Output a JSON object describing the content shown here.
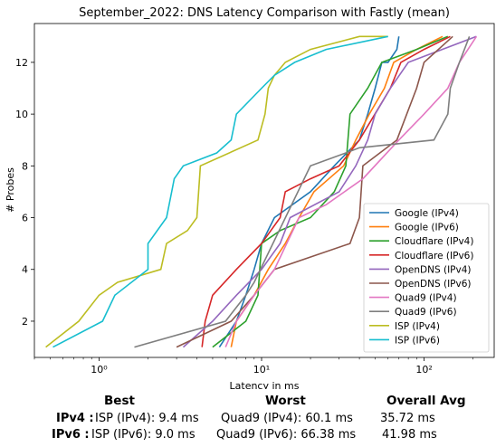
{
  "chart_data": {
    "type": "line",
    "title": "September_2022: DNS Latency Comparison with Fastly (mean)",
    "xlabel": "Latency in ms",
    "ylabel": "# Probes",
    "xscale": "log",
    "xlim": [
      0.4,
      270
    ],
    "ylim": [
      0.6,
      13.5
    ],
    "x_ticks": [
      1,
      10,
      100
    ],
    "x_tick_labels": [
      "10⁰",
      "10¹",
      "10²"
    ],
    "y_ticks": [
      2,
      4,
      6,
      8,
      10,
      12
    ],
    "legend_position": "lower-right",
    "grid": false,
    "series": [
      {
        "name": "Google (IPv4)",
        "color": "#1f77b4",
        "x": [
          5.5,
          7,
          8,
          9,
          10,
          12,
          20,
          28,
          40,
          45,
          50,
          55,
          60,
          68,
          70
        ],
        "y": [
          1,
          2,
          3,
          4,
          5,
          6,
          7,
          8,
          9,
          10,
          11,
          12,
          12,
          12.5,
          13
        ]
      },
      {
        "name": "Google (IPv6)",
        "color": "#ff7f0e",
        "x": [
          6.5,
          7,
          9,
          11,
          14,
          17,
          21,
          32,
          38,
          46,
          57,
          65,
          90,
          130
        ],
        "y": [
          1,
          2,
          3,
          4,
          5,
          6,
          7,
          8,
          9,
          10,
          11,
          12,
          12.5,
          13
        ]
      },
      {
        "name": "Cloudflare (IPv4)",
        "color": "#2ca02c",
        "x": [
          5,
          8,
          9.5,
          10,
          13,
          20,
          28,
          33,
          35,
          45,
          55,
          90,
          140
        ],
        "y": [
          1,
          2,
          3,
          5,
          5.5,
          6,
          7,
          8,
          10,
          11,
          12,
          12.5,
          13
        ]
      },
      {
        "name": "Cloudflare (IPv6)",
        "color": "#d62728",
        "x": [
          4.3,
          4.5,
          5,
          7,
          10,
          13,
          14,
          20,
          30,
          40,
          62,
          72,
          100,
          145
        ],
        "y": [
          1,
          2,
          3,
          4,
          5,
          6,
          7,
          7.5,
          8,
          9,
          11,
          12,
          12.5,
          13
        ]
      },
      {
        "name": "OpenDNS (IPv4)",
        "color": "#9467bd",
        "x": [
          3.3,
          5,
          7,
          10,
          13,
          15,
          30,
          38,
          45,
          50,
          62,
          80,
          210
        ],
        "y": [
          1,
          2,
          3,
          4,
          5,
          6,
          7,
          8,
          9,
          10,
          11,
          12,
          13
        ]
      },
      {
        "name": "OpenDNS (IPv6)",
        "color": "#8c564b",
        "x": [
          3,
          6.5,
          9,
          12,
          35,
          40,
          42,
          68,
          90,
          100,
          150
        ],
        "y": [
          1,
          2,
          3,
          4,
          5,
          6,
          8,
          9,
          11,
          12,
          13
        ]
      },
      {
        "name": "Quad9 (IPv4)",
        "color": "#e377c2",
        "x": [
          6,
          7,
          9,
          12,
          17,
          25,
          42,
          70,
          100,
          140,
          165,
          210
        ],
        "y": [
          1,
          2,
          3,
          4,
          6,
          6.5,
          7.5,
          9,
          10,
          11,
          12,
          13
        ]
      },
      {
        "name": "Quad9 (IPv6)",
        "color": "#7f7f7f",
        "x": [
          1.65,
          6,
          8,
          9,
          20,
          33,
          40,
          115,
          140,
          145,
          165,
          190
        ],
        "y": [
          1,
          2,
          3,
          3.5,
          8,
          8.5,
          8.7,
          9,
          10,
          11,
          12,
          13
        ]
      },
      {
        "name": "ISP (IPv4)",
        "color": "#bcbd22",
        "x": [
          0.47,
          0.75,
          1,
          1.3,
          2.4,
          2.6,
          3.5,
          4,
          4.2,
          9.5,
          10.5,
          11,
          12,
          14,
          20,
          40,
          60
        ],
        "y": [
          1,
          2,
          3,
          3.5,
          4,
          5,
          5.5,
          6,
          8,
          9,
          10,
          11,
          11.5,
          12,
          12.5,
          13,
          13
        ]
      },
      {
        "name": "ISP (IPv6)",
        "color": "#17becf",
        "x": [
          0.52,
          1.05,
          1.25,
          2,
          2,
          2.6,
          2.8,
          2.9,
          3.3,
          5.3,
          6.5,
          7,
          10,
          12,
          16,
          25,
          60
        ],
        "y": [
          1,
          2,
          3,
          4,
          5,
          6,
          7,
          7.5,
          8,
          8.5,
          9,
          10,
          11,
          11.5,
          12,
          12.5,
          13
        ]
      }
    ]
  },
  "stats": {
    "headers": {
      "best": "Best",
      "worst": "Worst",
      "avg": "Overall Avg"
    },
    "rows": [
      {
        "label": "IPv4 :",
        "best": "ISP (IPv4): 9.4 ms",
        "worst": "Quad9 (IPv4): 60.1 ms",
        "avg": "35.72 ms"
      },
      {
        "label": "IPv6 :",
        "best": "ISP (IPv6): 9.0 ms",
        "worst": "Quad9 (IPv6): 66.38 ms",
        "avg": "41.98 ms"
      }
    ]
  }
}
